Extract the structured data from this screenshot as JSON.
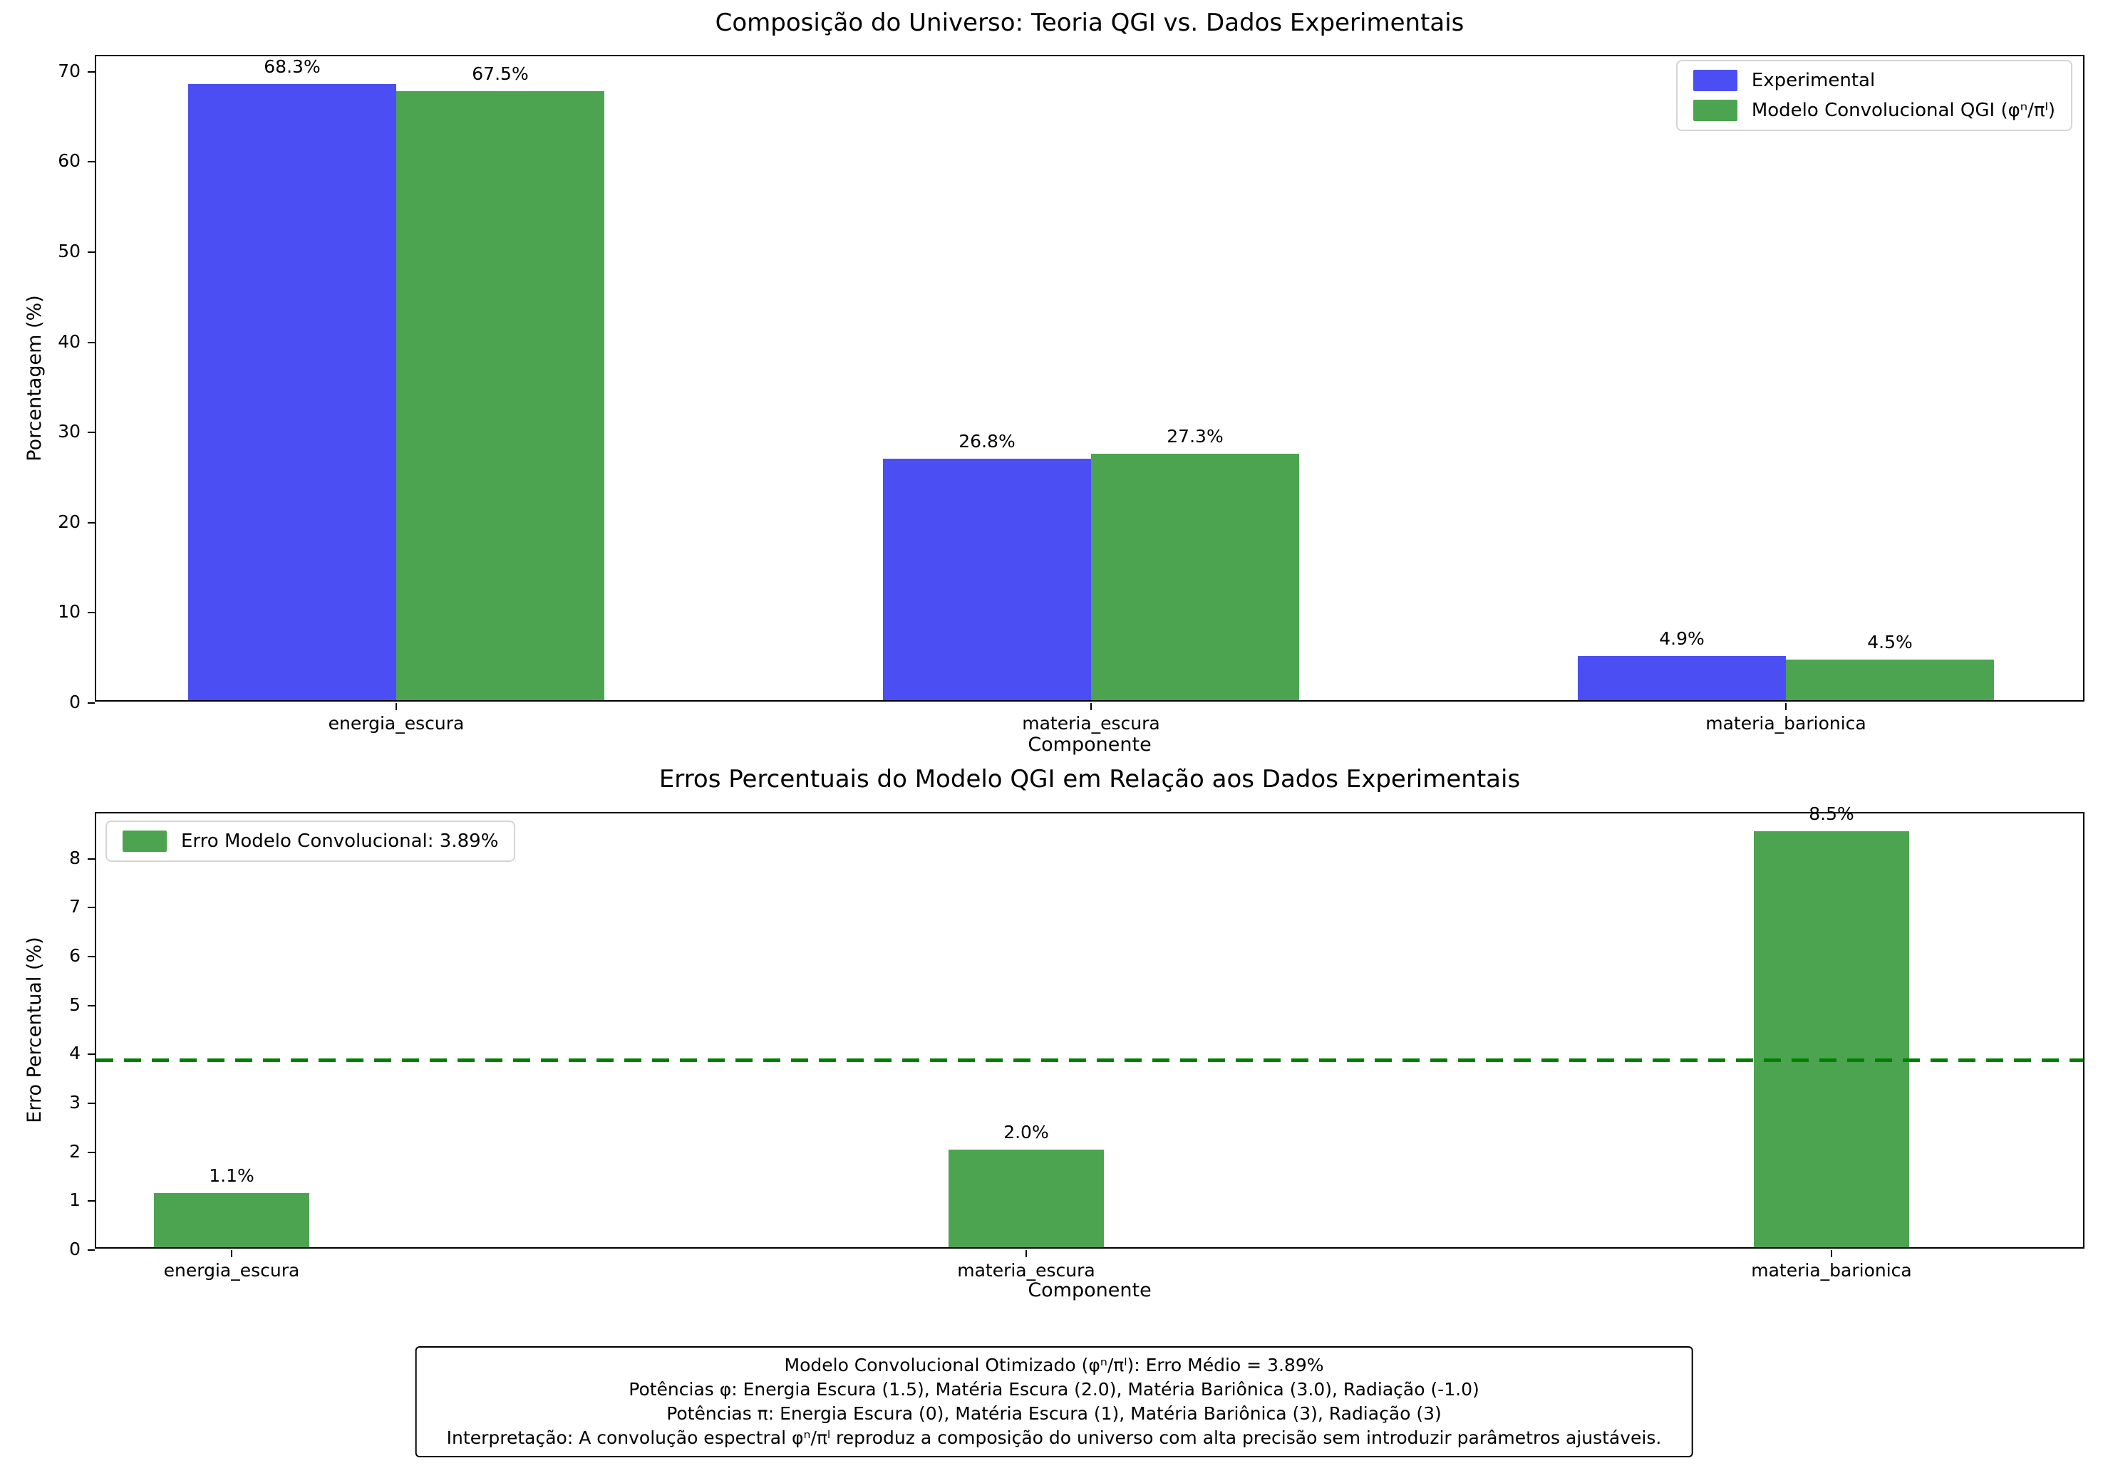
{
  "figure": {
    "background": "#ffffff"
  },
  "colors": {
    "experimental": "#4B4FF3",
    "model": "#4CA450",
    "mean_line": "#008000",
    "axis": "#000000",
    "legend_border": "#d5d5d5"
  },
  "chart_data": [
    {
      "type": "bar",
      "title": "Composição do Universo: Teoria QGI vs. Dados Experimentais",
      "xlabel": "Componente",
      "ylabel": "Porcentagem (%)",
      "categories": [
        "energia_escura",
        "materia_escura",
        "materia_barionica"
      ],
      "series": [
        {
          "name": "Experimental",
          "color_key": "experimental",
          "values": [
            68.3,
            26.8,
            4.9
          ],
          "labels": [
            "68.3%",
            "26.8%",
            "4.9%"
          ]
        },
        {
          "name": "Modelo Convolucional QGI (φⁿ/πˡ)",
          "color_key": "model",
          "values": [
            67.5,
            27.3,
            4.5
          ],
          "labels": [
            "67.5%",
            "27.3%",
            "4.5%"
          ]
        }
      ],
      "yticks": [
        0,
        10,
        20,
        30,
        40,
        50,
        60,
        70
      ],
      "ylim": [
        0,
        71.715
      ],
      "grid": false,
      "legend_position": "upper-right"
    },
    {
      "type": "bar",
      "title": "Erros Percentuais do Modelo QGI em Relação aos Dados Experimentais",
      "xlabel": "Componente",
      "ylabel": "Erro Percentual (%)",
      "categories": [
        "energia_escura",
        "materia_escura",
        "materia_barionica"
      ],
      "series": [
        {
          "name": "Erro Modelo Convolucional: 3.89%",
          "color_key": "model",
          "values": [
            1.1,
            2.0,
            8.5
          ],
          "labels": [
            "1.1%",
            "2.0%",
            "8.5%"
          ]
        }
      ],
      "yticks": [
        0,
        1,
        2,
        3,
        4,
        5,
        6,
        7,
        8
      ],
      "ylim": [
        0,
        8.925
      ],
      "grid": false,
      "legend_position": "upper-left",
      "mean_line": {
        "value": 3.89,
        "style": "dashed",
        "color_key": "mean_line"
      }
    }
  ],
  "footer": {
    "lines": [
      "Modelo Convolucional Otimizado (φⁿ/πˡ): Erro Médio = 3.89%",
      "Potências φ: Energia Escura (1.5), Matéria Escura (2.0), Matéria Bariônica (3.0), Radiação (-1.0)",
      "Potências π: Energia Escura (0), Matéria Escura (1), Matéria Bariônica (3), Radiação (3)",
      "Interpretação: A convolução espectral φⁿ/πˡ reproduz a composição do universo com alta precisão sem introduzir parâmetros ajustáveis."
    ]
  }
}
